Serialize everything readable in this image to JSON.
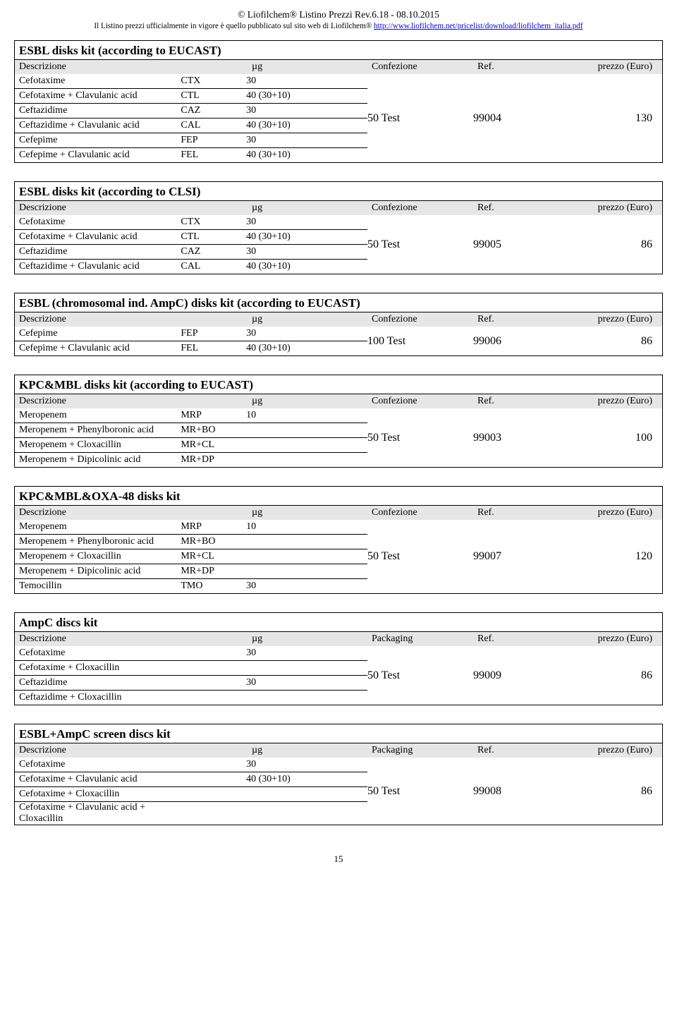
{
  "header": {
    "line1_pre": "© Liofilchem",
    "line1_post": " Listino Prezzi Rev.6.18 - 08.10.2015",
    "line2_pre": "Il Listino prezzi ufficialmente in vigore è quello pubblicato sul sito web di Liofilchem",
    "line2_link": "http://www.liofilchem.net/pricelist/download/liofilchem_italia.pdf",
    "reg": "®"
  },
  "labels": {
    "descrizione": "Descrizione",
    "ug": "µg",
    "confezione": "Confezione",
    "packaging": "Packaging",
    "ref": "Ref.",
    "prezzo": "prezzo (Euro)"
  },
  "sections": [
    {
      "title": "ESBL disks kit (according to EUCAST)",
      "pack_label_key": "confezione",
      "rows": [
        {
          "desc": "Cefotaxime",
          "code": "CTX",
          "ug": "30"
        },
        {
          "desc": "Cefotaxime + Clavulanic acid",
          "code": "CTL",
          "ug": "40 (30+10)"
        },
        {
          "desc": "Ceftazidime",
          "code": "CAZ",
          "ug": "30"
        },
        {
          "desc": "Ceftazidime + Clavulanic acid",
          "code": "CAL",
          "ug": "40 (30+10)"
        },
        {
          "desc": "Cefepime",
          "code": "FEP",
          "ug": "30"
        },
        {
          "desc": "Cefepime + Clavulanic acid",
          "code": "FEL",
          "ug": "40 (30+10)"
        }
      ],
      "pack": "50 Test",
      "ref": "99004",
      "price": "130"
    },
    {
      "title": "ESBL disks kit (according to CLSI)",
      "pack_label_key": "confezione",
      "rows": [
        {
          "desc": "Cefotaxime",
          "code": "CTX",
          "ug": "30"
        },
        {
          "desc": "Cefotaxime + Clavulanic acid",
          "code": "CTL",
          "ug": "40 (30+10)"
        },
        {
          "desc": "Ceftazidime",
          "code": "CAZ",
          "ug": "30"
        },
        {
          "desc": "Ceftazidime + Clavulanic acid",
          "code": "CAL",
          "ug": "40 (30+10)"
        }
      ],
      "pack": "50 Test",
      "ref": "99005",
      "price": "86"
    },
    {
      "title": "ESBL (chromosomal ind. AmpC) disks kit (according to EUCAST)",
      "pack_label_key": "confezione",
      "rows": [
        {
          "desc": "Cefepime",
          "code": "FEP",
          "ug": "30"
        },
        {
          "desc": "Cefepime + Clavulanic acid",
          "code": "FEL",
          "ug": "40 (30+10)"
        }
      ],
      "pack": "100 Test",
      "ref": "99006",
      "price": "86"
    },
    {
      "title": "KPC&MBL disks kit (according to EUCAST)",
      "pack_label_key": "confezione",
      "rows": [
        {
          "desc": "Meropenem",
          "code": "MRP",
          "ug": "10"
        },
        {
          "desc": "Meropenem + Phenylboronic acid",
          "code": "MR+BO",
          "ug": ""
        },
        {
          "desc": "Meropenem + Cloxacillin",
          "code": "MR+CL",
          "ug": ""
        },
        {
          "desc": "Meropenem + Dipicolinic acid",
          "code": "MR+DP",
          "ug": ""
        }
      ],
      "pack": "50 Test",
      "ref": "99003",
      "price": "100"
    },
    {
      "title": "KPC&MBL&OXA-48 disks kit",
      "pack_label_key": "confezione",
      "rows": [
        {
          "desc": "Meropenem",
          "code": "MRP",
          "ug": "10"
        },
        {
          "desc": "Meropenem + Phenylboronic acid",
          "code": "MR+BO",
          "ug": ""
        },
        {
          "desc": "Meropenem + Cloxacillin",
          "code": "MR+CL",
          "ug": ""
        },
        {
          "desc": "Meropenem + Dipicolinic acid",
          "code": "MR+DP",
          "ug": ""
        },
        {
          "desc": "Temocillin",
          "code": "TMO",
          "ug": "30"
        }
      ],
      "pack": "50 Test",
      "ref": "99007",
      "price": "120"
    },
    {
      "title": "AmpC discs kit",
      "pack_label_key": "packaging",
      "rows": [
        {
          "desc": "Cefotaxime",
          "code": "",
          "ug": "30"
        },
        {
          "desc": "Cefotaxime + Cloxacillin",
          "code": "",
          "ug": ""
        },
        {
          "desc": "Ceftazidime",
          "code": "",
          "ug": "30"
        },
        {
          "desc": "Ceftazidime + Cloxacillin",
          "code": "",
          "ug": ""
        }
      ],
      "pack": "50 Test",
      "ref": "99009",
      "price": "86"
    },
    {
      "title": "ESBL+AmpC screen discs kit",
      "pack_label_key": "packaging",
      "rows": [
        {
          "desc": "Cefotaxime",
          "code": "",
          "ug": "30"
        },
        {
          "desc": "Cefotaxime + Clavulanic acid",
          "code": "",
          "ug": "40 (30+10)"
        },
        {
          "desc": "Cefotaxime + Cloxacillin",
          "code": "",
          "ug": ""
        },
        {
          "desc": "Cefotaxime + Clavulanic acid + Cloxacillin",
          "code": "",
          "ug": ""
        }
      ],
      "pack": "50 Test",
      "ref": "99008",
      "price": "86"
    }
  ],
  "page_number": "15"
}
